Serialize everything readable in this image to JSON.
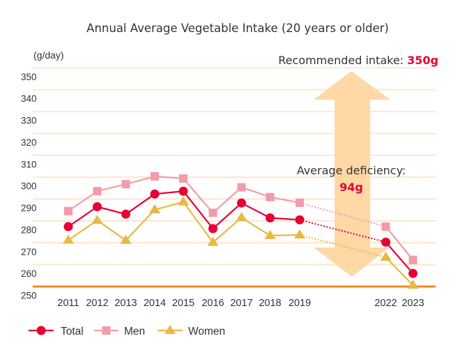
{
  "chart_data": {
    "type": "line",
    "title": "Annual Average Vegetable Intake (20 years or older)",
    "ylabel": "(g/day)",
    "xlabel": "",
    "ylim": [
      250,
      350
    ],
    "yticks": [
      350,
      340,
      330,
      320,
      310,
      300,
      290,
      280,
      270,
      260,
      250
    ],
    "categories": [
      "2011",
      "2012",
      "2013",
      "2014",
      "2015",
      "2016",
      "2017",
      "2018",
      "2019",
      "2022",
      "2023"
    ],
    "grid": true,
    "legend_position": "bottom-left",
    "series": [
      {
        "name": "Total",
        "marker": "circle",
        "color": "#E60033",
        "values": [
          277.4,
          286.5,
          283.1,
          292.3,
          293.6,
          276.5,
          288.2,
          281.4,
          280.5,
          270.3,
          256.0
        ]
      },
      {
        "name": "Men",
        "marker": "square",
        "color": "#F29BAB",
        "values": [
          284.5,
          293.6,
          296.8,
          300.4,
          299.4,
          283.7,
          295.4,
          290.9,
          288.3,
          277.4,
          262.2
        ]
      },
      {
        "name": "Women",
        "marker": "triangle",
        "color": "#E8B943",
        "values": [
          271.2,
          280.3,
          271.1,
          285.1,
          288.7,
          270.2,
          281.5,
          273.3,
          273.6,
          263.4,
          250.6
        ]
      }
    ],
    "gap_note": "Segments between 2019 and 2022 drawn as dotted lines (no data for 2020-2021)",
    "annotations": {
      "recommended_label": "Recommended intake: ",
      "recommended_value": "350g",
      "recommended_target": 350,
      "deficiency_label": "Average deficiency:",
      "deficiency_value": "94g",
      "deficiency_grams": 94
    },
    "colors": {
      "grid": "#FDE8D2",
      "axis": "#F18A1A",
      "arrow": "#FFD8A6",
      "highlight": "#E60033"
    }
  }
}
